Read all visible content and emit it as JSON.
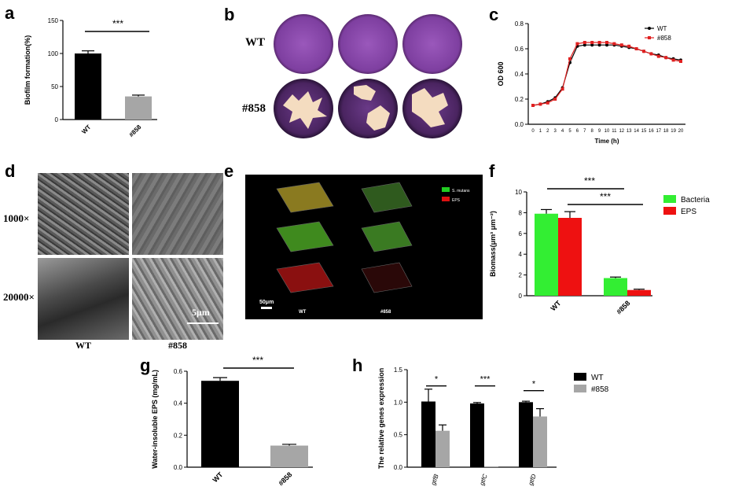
{
  "panels": {
    "a": "a",
    "b": "b",
    "c": "c",
    "d": "d",
    "e": "e",
    "f": "f",
    "g": "g",
    "h": "h"
  },
  "chart_data": [
    {
      "id": "a",
      "type": "bar",
      "categories": [
        "WT",
        "#858"
      ],
      "values": [
        100,
        35
      ],
      "errors": [
        4,
        2
      ],
      "colors": [
        "#000000",
        "#a6a6a6"
      ],
      "ylabel": "Biofilm formation(%)",
      "ylim": [
        0,
        150
      ],
      "yticks": [
        "0",
        "50",
        "100",
        "150"
      ],
      "significance": "***"
    },
    {
      "id": "c",
      "type": "line",
      "x": [
        0,
        1,
        2,
        3,
        4,
        5,
        6,
        7,
        8,
        9,
        10,
        11,
        12,
        13,
        14,
        15,
        16,
        17,
        18,
        19,
        20
      ],
      "xticks": [
        "0",
        "1",
        "2",
        "3",
        "4",
        "5",
        "6",
        "7",
        "8",
        "9",
        "10",
        "11",
        "12",
        "13",
        "14",
        "15",
        "16",
        "17",
        "18",
        "19",
        "20"
      ],
      "series": [
        {
          "name": "WT",
          "color": "#000000",
          "values": [
            0.15,
            0.16,
            0.18,
            0.21,
            0.29,
            0.49,
            0.62,
            0.63,
            0.63,
            0.63,
            0.63,
            0.63,
            0.62,
            0.61,
            0.6,
            0.58,
            0.56,
            0.55,
            0.53,
            0.52,
            0.51
          ]
        },
        {
          "name": "#858",
          "color": "#e02020",
          "values": [
            0.15,
            0.16,
            0.17,
            0.2,
            0.28,
            0.52,
            0.64,
            0.65,
            0.65,
            0.65,
            0.65,
            0.64,
            0.63,
            0.62,
            0.6,
            0.58,
            0.56,
            0.54,
            0.53,
            0.51,
            0.5
          ]
        }
      ],
      "xlabel": "Time (h)",
      "ylabel": "OD 600",
      "ylim": [
        0,
        0.8
      ],
      "yticks": [
        "0.0",
        "0.2",
        "0.4",
        "0.6",
        "0.8"
      ],
      "legend": "top-right"
    },
    {
      "id": "f",
      "type": "bar",
      "categories": [
        "WT",
        "#858"
      ],
      "series": [
        {
          "name": "Bacteria",
          "color": "#33ee33",
          "values": [
            7.9,
            1.7
          ],
          "errors": [
            0.4,
            0.1
          ]
        },
        {
          "name": "EPS",
          "color": "#ee1111",
          "values": [
            7.5,
            0.55
          ],
          "errors": [
            0.6,
            0.08
          ]
        }
      ],
      "ylabel": "Biomass(μm³ μm⁻²)",
      "ylim": [
        0,
        10
      ],
      "yticks": [
        "0",
        "2",
        "4",
        "6",
        "8",
        "10"
      ],
      "significance": [
        "***",
        "***"
      ],
      "legend": "top-right"
    },
    {
      "id": "g",
      "type": "bar",
      "categories": [
        "WT",
        "#858"
      ],
      "values": [
        0.54,
        0.135
      ],
      "errors": [
        0.02,
        0.008
      ],
      "colors": [
        "#000000",
        "#a6a6a6"
      ],
      "ylabel": "Water-insoluble EPS (mg/mL)",
      "ylim": [
        0,
        0.6
      ],
      "yticks": [
        "0.0",
        "0.2",
        "0.4",
        "0.6"
      ],
      "significance": "***"
    },
    {
      "id": "h",
      "type": "bar",
      "categories": [
        "gtfB",
        "gtfC",
        "gtfD"
      ],
      "series": [
        {
          "name": "WT",
          "color": "#000000",
          "values": [
            1.01,
            0.98,
            1.0
          ],
          "errors": [
            0.19,
            0.015,
            0.015
          ]
        },
        {
          "name": "#858",
          "color": "#a6a6a6",
          "values": [
            0.56,
            0.005,
            0.78
          ],
          "errors": [
            0.09,
            0.0,
            0.12
          ]
        }
      ],
      "ylabel": "The relative genes expression",
      "ylim": [
        0,
        1.5
      ],
      "yticks": [
        "0.0",
        "0.5",
        "1.0",
        "1.5"
      ],
      "significance": [
        "*",
        "***",
        "*"
      ],
      "legend": "top-right"
    }
  ],
  "panel_b": {
    "row_labels": [
      "WT",
      "#858"
    ],
    "bg_color": "#8a4aa8",
    "colony_color": "#f4dcc0"
  },
  "panel_d": {
    "row_labels": [
      "1000×",
      "20000×"
    ],
    "col_labels": [
      "WT",
      "#858"
    ],
    "scale_bar": "5μm"
  },
  "panel_e": {
    "legend": [
      "S. mutans",
      "EPS"
    ],
    "legend_colors": [
      "#22cc22",
      "#dd1111"
    ],
    "scale_bar": "50μm",
    "col_labels": [
      "WT",
      "#858"
    ]
  }
}
